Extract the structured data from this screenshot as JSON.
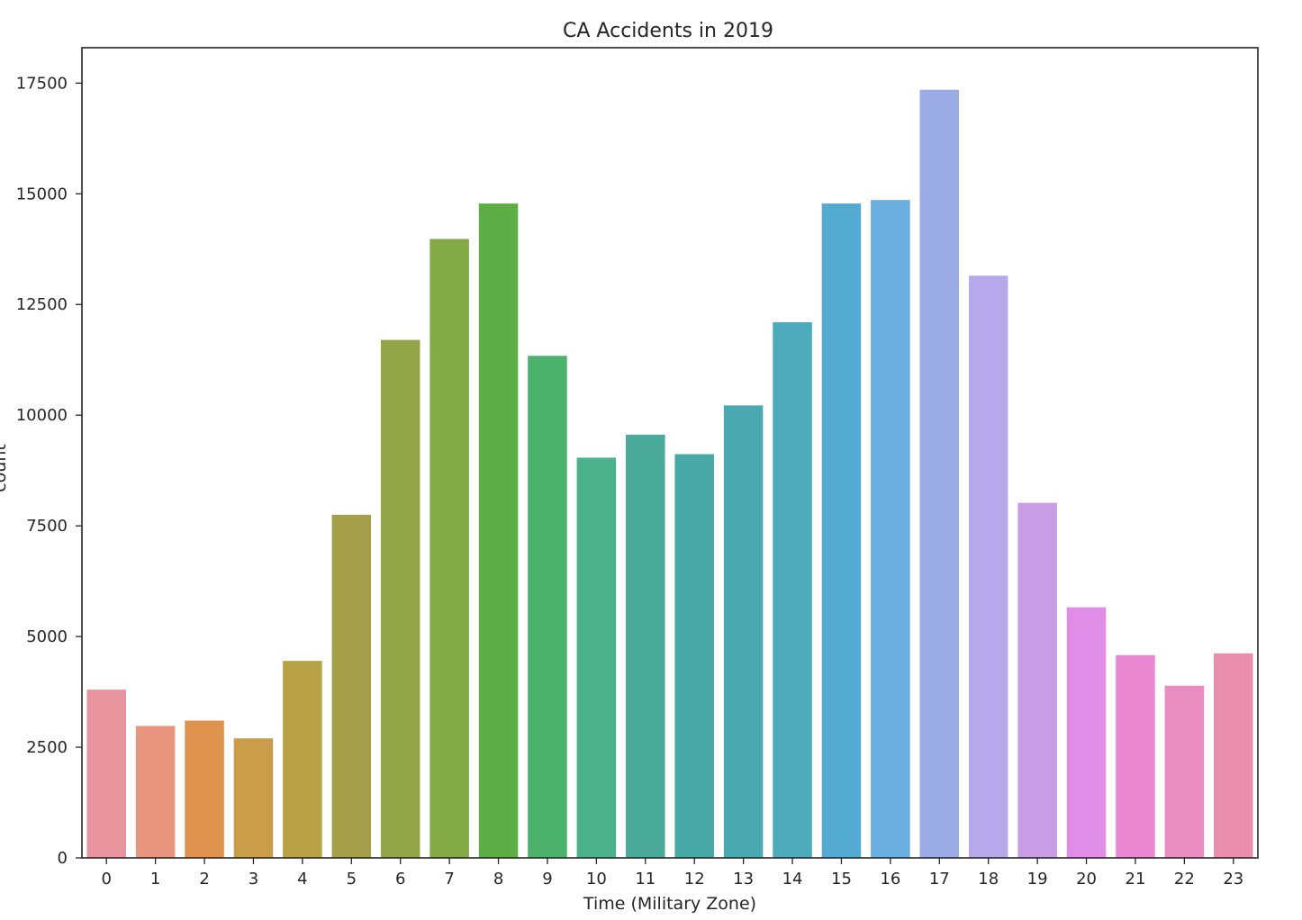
{
  "chart_data": {
    "type": "bar",
    "title": "CA Accidents in 2019",
    "xlabel": "Time (Military Zone)",
    "ylabel": "count",
    "categories": [
      "0",
      "1",
      "2",
      "3",
      "4",
      "5",
      "6",
      "7",
      "8",
      "9",
      "10",
      "11",
      "12",
      "13",
      "14",
      "15",
      "16",
      "17",
      "18",
      "19",
      "20",
      "21",
      "22",
      "23"
    ],
    "values": [
      3800,
      2980,
      3100,
      2700,
      4450,
      7750,
      11700,
      13980,
      14780,
      11340,
      9040,
      9560,
      9120,
      10220,
      12100,
      14780,
      14860,
      17350,
      13150,
      8020,
      5660,
      4580,
      3890,
      4620
    ],
    "ylim": [
      0,
      18300
    ],
    "yticks": [
      0,
      2500,
      5000,
      7500,
      10000,
      12500,
      15000,
      17500
    ],
    "colors": [
      "#e8949e",
      "#e8967f",
      "#e0924f",
      "#c99d4a",
      "#b9a245",
      "#a59e4a",
      "#93a347",
      "#84aa47",
      "#5eae48",
      "#4bb16c",
      "#4bb28d",
      "#4aab9b",
      "#49a9a6",
      "#4aa8b0",
      "#4dabbc",
      "#52aad1",
      "#6aaee0",
      "#9aabe6",
      "#b7a8ec",
      "#c99ce6",
      "#e08de7",
      "#ea87d1",
      "#e98cbf",
      "#e98fad"
    ]
  }
}
